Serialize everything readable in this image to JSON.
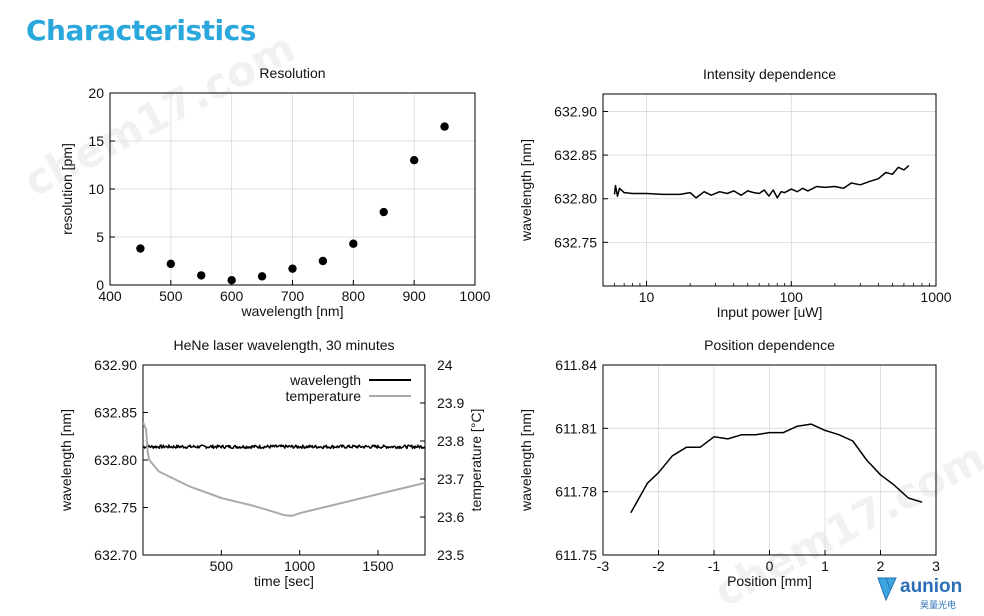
{
  "page": {
    "title": "Characteristics"
  },
  "watermarks": [
    "chem17.com",
    "chem17.com"
  ],
  "logo": {
    "text": "aunion",
    "subtext": "昊量光电",
    "color": "#2a6fb5"
  },
  "chart_data": [
    {
      "id": "resolution",
      "type": "scatter",
      "title": "Resolution",
      "xlabel": "wavelength [nm]",
      "ylabel": "resolution [pm]",
      "xlim": [
        400,
        1000
      ],
      "ylim": [
        0,
        20
      ],
      "xticks": [
        400,
        500,
        600,
        700,
        800,
        900,
        1000
      ],
      "yticks": [
        0,
        5,
        10,
        15,
        20
      ],
      "grid": true,
      "series": [
        {
          "x": [
            450,
            500,
            550,
            600,
            650,
            700,
            750,
            800,
            850,
            900,
            950
          ],
          "y": [
            3.8,
            2.2,
            1.0,
            0.5,
            0.9,
            1.7,
            2.5,
            4.3,
            7.6,
            13.0,
            16.5
          ]
        }
      ]
    },
    {
      "id": "intensity",
      "type": "line",
      "title": "Intensity dependence",
      "xlabel": "Input power [uW]",
      "ylabel": "wavelength [nm]",
      "xscale": "log",
      "xlim": [
        5,
        1000
      ],
      "ylim": [
        632.7,
        632.92
      ],
      "xticks": [
        10,
        100,
        1000
      ],
      "yticks": [
        632.75,
        632.8,
        632.85,
        632.9
      ],
      "ytick_labels": [
        "632.75",
        "632.80",
        "632.85",
        "632.90"
      ],
      "grid": true,
      "series": [
        {
          "x": [
            6,
            6.1,
            6.3,
            6.5,
            7,
            8,
            10,
            13,
            17,
            20,
            22,
            25,
            28,
            32,
            36,
            40,
            45,
            50,
            55,
            60,
            65,
            70,
            75,
            80,
            85,
            90,
            100,
            110,
            120,
            130,
            150,
            170,
            200,
            230,
            260,
            300,
            350,
            400,
            450,
            500,
            550,
            600,
            650
          ],
          "y": [
            632.805,
            632.815,
            632.803,
            632.812,
            632.807,
            632.806,
            632.806,
            632.805,
            632.805,
            632.807,
            632.801,
            632.808,
            632.804,
            632.808,
            632.806,
            632.809,
            632.804,
            632.809,
            632.807,
            632.806,
            632.81,
            632.803,
            632.81,
            632.801,
            632.808,
            632.807,
            632.811,
            632.808,
            632.812,
            632.809,
            632.814,
            632.813,
            632.814,
            632.812,
            632.818,
            632.816,
            632.82,
            632.823,
            632.83,
            632.828,
            632.836,
            632.833,
            632.838
          ]
        }
      ]
    },
    {
      "id": "hene",
      "type": "line",
      "title": "HeNe laser wavelength, 30 minutes",
      "xlabel": "time [sec]",
      "ylabel": "wavelength [nm]",
      "y2label": "temperature [°C]",
      "xlim": [
        0,
        1800
      ],
      "ylim": [
        632.7,
        632.9
      ],
      "y2lim": [
        23.5,
        24.0
      ],
      "xticks": [
        500,
        1000,
        1500
      ],
      "yticks": [
        632.7,
        632.75,
        632.8,
        632.85,
        632.9
      ],
      "ytick_labels": [
        "632.70",
        "632.75",
        "632.80",
        "632.85",
        "632.90"
      ],
      "y2ticks": [
        23.5,
        23.6,
        23.7,
        23.8,
        23.9,
        24.0
      ],
      "y2tick_labels": [
        "23.5",
        "23.6",
        "23.7",
        "23.8",
        "23.9",
        "24"
      ],
      "grid": false,
      "legend": "top-right",
      "series": [
        {
          "name": "wavelength",
          "color": "#000000",
          "axis": "left",
          "x": [
            0,
            1800
          ],
          "y": [
            632.814,
            632.814
          ]
        },
        {
          "name": "temperature",
          "color": "#aaaaaa",
          "axis": "right",
          "x": [
            0,
            20,
            30,
            40,
            60,
            100,
            200,
            300,
            400,
            500,
            600,
            700,
            800,
            900,
            950,
            1000,
            1100,
            1200,
            1300,
            1400,
            1500,
            1600,
            1700,
            1800
          ],
          "y": [
            23.85,
            23.83,
            23.77,
            23.75,
            23.74,
            23.72,
            23.7,
            23.68,
            23.665,
            23.65,
            23.64,
            23.63,
            23.618,
            23.605,
            23.603,
            23.61,
            23.62,
            23.63,
            23.64,
            23.65,
            23.66,
            23.67,
            23.68,
            23.69
          ]
        }
      ]
    },
    {
      "id": "position",
      "type": "line",
      "title": "Position dependence",
      "xlabel": "Position [mm]",
      "ylabel": "wavelength [nm]",
      "xlim": [
        -3,
        3
      ],
      "ylim": [
        611.75,
        611.84
      ],
      "xticks": [
        -3,
        -2,
        -1,
        0,
        1,
        2,
        3
      ],
      "yticks": [
        611.75,
        611.78,
        611.81,
        611.84
      ],
      "ytick_labels": [
        "611.75",
        "611.78",
        "611.81",
        "611.84"
      ],
      "grid": true,
      "series": [
        {
          "x": [
            -2.5,
            -2.2,
            -2.0,
            -1.75,
            -1.5,
            -1.25,
            -1.0,
            -0.75,
            -0.5,
            -0.25,
            0,
            0.25,
            0.5,
            0.75,
            1.0,
            1.25,
            1.5,
            1.75,
            2.0,
            2.25,
            2.5,
            2.75
          ],
          "y": [
            611.77,
            611.784,
            611.789,
            611.797,
            611.801,
            611.801,
            611.806,
            611.805,
            611.807,
            611.807,
            611.808,
            611.808,
            611.811,
            611.812,
            611.809,
            611.807,
            611.804,
            611.795,
            611.788,
            611.783,
            611.777,
            611.775
          ]
        }
      ]
    }
  ]
}
